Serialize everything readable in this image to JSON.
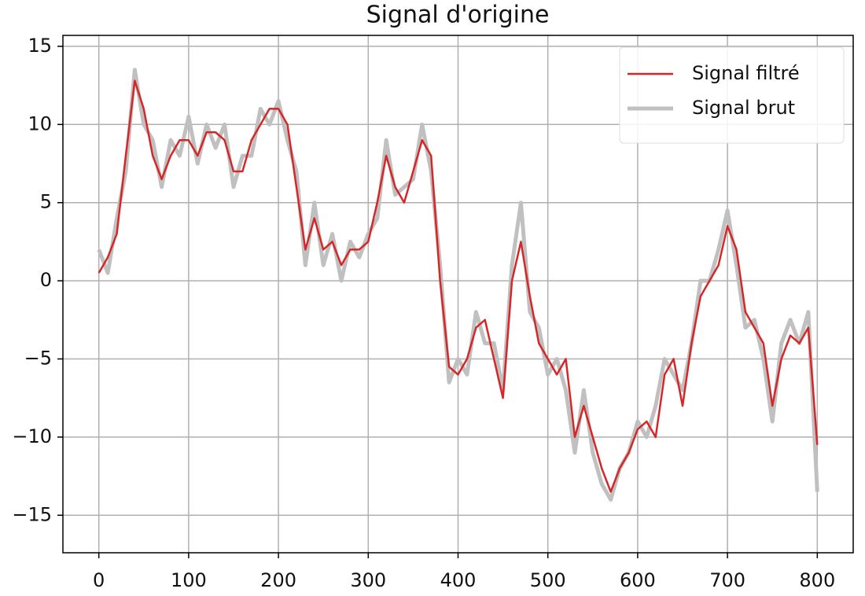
{
  "chart_data": {
    "type": "line",
    "title": "Signal d'origine",
    "x": [
      0,
      10,
      20,
      30,
      40,
      50,
      60,
      70,
      80,
      90,
      100,
      110,
      120,
      130,
      140,
      150,
      160,
      170,
      180,
      190,
      200,
      210,
      220,
      230,
      240,
      250,
      260,
      270,
      280,
      290,
      300,
      310,
      320,
      330,
      340,
      350,
      360,
      370,
      380,
      390,
      400,
      410,
      420,
      430,
      440,
      450,
      460,
      470,
      480,
      490,
      500,
      510,
      520,
      530,
      540,
      550,
      560,
      570,
      580,
      590,
      600,
      610,
      620,
      630,
      640,
      650,
      660,
      670,
      680,
      690,
      700,
      710,
      720,
      730,
      740,
      750,
      760,
      770,
      780,
      790,
      800
    ],
    "series": [
      {
        "name": "Signal filtré",
        "color": "#d62728",
        "width": 2.5,
        "values": [
          0.5,
          1.5,
          3,
          8,
          12.8,
          11,
          8,
          6.5,
          8,
          9,
          9,
          8,
          9.5,
          9.5,
          9,
          7,
          7,
          9,
          10,
          11,
          11,
          10,
          6,
          2,
          4,
          2,
          2.5,
          1,
          2,
          2,
          2.5,
          5,
          8,
          6,
          5,
          7,
          9,
          8,
          0,
          -5.5,
          -6,
          -5,
          -3,
          -2.5,
          -5,
          -7.5,
          0,
          2.5,
          -1,
          -4,
          -5,
          -6,
          -5,
          -10,
          -8,
          -10,
          -12,
          -13.5,
          -12,
          -11,
          -9.5,
          -9,
          -10,
          -6,
          -5,
          -8,
          -4,
          -1,
          0,
          1,
          3.5,
          2,
          -2,
          -3,
          -4,
          -8,
          -5,
          -3.5,
          -4,
          -3,
          -10.5
        ]
      },
      {
        "name": "Signal brut",
        "color": "#c0c0c0",
        "width": 5,
        "values": [
          2,
          0.5,
          4,
          7,
          13.5,
          10,
          9,
          6,
          9,
          8,
          10.5,
          7.5,
          10,
          8.5,
          10,
          6,
          8,
          8,
          11,
          10,
          11.5,
          9,
          7,
          1,
          5,
          1,
          3,
          0,
          2.5,
          1.5,
          3,
          4,
          9,
          5.5,
          6,
          6.5,
          10,
          7,
          1,
          -6.5,
          -5,
          -6,
          -2,
          -4,
          -4,
          -7,
          1,
          5,
          -2,
          -3,
          -6,
          -5,
          -7,
          -11,
          -7,
          -11,
          -13,
          -14,
          -12,
          -11,
          -9,
          -10,
          -8,
          -5,
          -6,
          -7,
          -4,
          0,
          0,
          2,
          4.5,
          1,
          -3,
          -2.5,
          -5,
          -9,
          -4,
          -2.5,
          -4,
          -2,
          -13.5
        ]
      }
    ],
    "xlim": [
      -40,
      840
    ],
    "ylim": [
      -17.4,
      15.7
    ],
    "xticks": [
      0,
      100,
      200,
      300,
      400,
      500,
      600,
      700,
      800
    ],
    "yticks": [
      {
        "value": -15,
        "label": "−15"
      },
      {
        "value": -10,
        "label": "−10"
      },
      {
        "value": -5,
        "label": "−5"
      },
      0,
      5,
      10,
      15
    ],
    "grid": true,
    "legend": "upper right"
  }
}
